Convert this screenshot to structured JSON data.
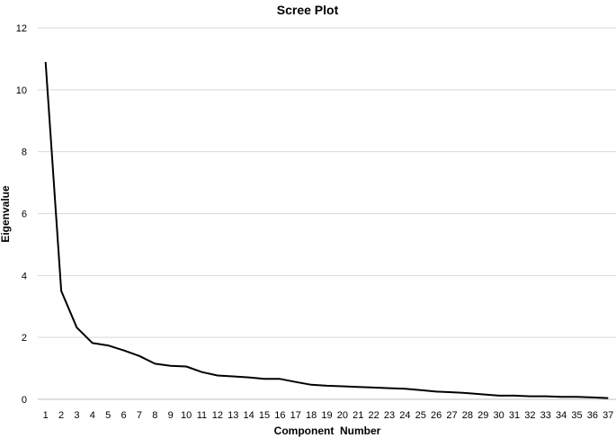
{
  "chart_data": {
    "type": "line",
    "title": "Scree Plot",
    "xlabel": "Component  Number",
    "ylabel": "Eigenvalue",
    "ylim": [
      0,
      12
    ],
    "yticks": [
      0,
      2,
      4,
      6,
      8,
      10,
      12
    ],
    "grid": true,
    "legend": "none",
    "x": [
      1,
      2,
      3,
      4,
      5,
      6,
      7,
      8,
      9,
      10,
      11,
      12,
      13,
      14,
      15,
      16,
      17,
      18,
      19,
      20,
      21,
      22,
      23,
      24,
      25,
      26,
      27,
      28,
      29,
      30,
      31,
      32,
      33,
      34,
      35,
      36,
      37
    ],
    "series": [
      {
        "color": "#000000",
        "values": [
          10.9,
          3.5,
          2.32,
          1.82,
          1.74,
          1.58,
          1.4,
          1.15,
          1.08,
          1.06,
          0.88,
          0.77,
          0.74,
          0.71,
          0.66,
          0.66,
          0.56,
          0.47,
          0.44,
          0.42,
          0.4,
          0.38,
          0.36,
          0.34,
          0.3,
          0.25,
          0.23,
          0.2,
          0.16,
          0.12,
          0.12,
          0.1,
          0.1,
          0.08,
          0.08,
          0.06,
          0.04
        ]
      }
    ]
  }
}
